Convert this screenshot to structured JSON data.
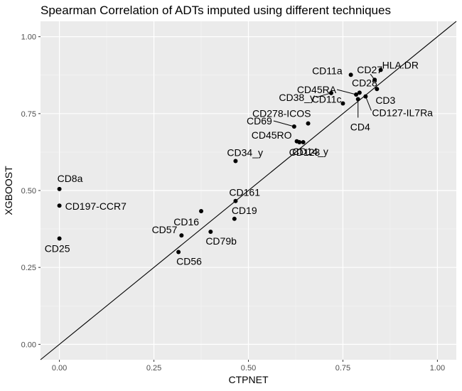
{
  "chart_data": {
    "type": "scatter",
    "title": "Spearman Correlation of ADTs imputed using different techniques",
    "xlabel": "CTPNET",
    "ylabel": "XGBOOST",
    "xlim": [
      -0.05,
      1.05
    ],
    "ylim": [
      -0.05,
      1.05
    ],
    "xticks": [
      "0.00",
      "0.25",
      "0.50",
      "0.75",
      "1.00"
    ],
    "yticks": [
      "0.00",
      "0.25",
      "0.50",
      "0.75",
      "1.00"
    ],
    "grid": true,
    "reference_line": {
      "slope": 1,
      "intercept": 0
    },
    "points": [
      {
        "label": "CD8a",
        "x": 0.0,
        "y": 0.505
      },
      {
        "label": "CD197-CCR7",
        "x": 0.0,
        "y": 0.451
      },
      {
        "label": "CD25",
        "x": 0.0,
        "y": 0.344
      },
      {
        "label": "CD57",
        "x": 0.323,
        "y": 0.354
      },
      {
        "label": "CD56",
        "x": 0.315,
        "y": 0.3
      },
      {
        "label": "CD16",
        "x": 0.375,
        "y": 0.433
      },
      {
        "label": "CD79b",
        "x": 0.4,
        "y": 0.366
      },
      {
        "label": "CD161",
        "x": 0.466,
        "y": 0.466
      },
      {
        "label": "CD19",
        "x": 0.463,
        "y": 0.408
      },
      {
        "label": "CD34_y",
        "x": 0.466,
        "y": 0.596
      },
      {
        "label": "CD69",
        "x": 0.621,
        "y": 0.708
      },
      {
        "label": "CD278-ICOS",
        "x": 0.658,
        "y": 0.718
      },
      {
        "label": "CD45RO",
        "x": 0.628,
        "y": 0.66
      },
      {
        "label": "CD14_y",
        "x": 0.635,
        "y": 0.657
      },
      {
        "label": "CD123",
        "x": 0.645,
        "y": 0.657
      },
      {
        "label": "CD38_y",
        "x": 0.719,
        "y": 0.817
      },
      {
        "label": "CD11c",
        "x": 0.75,
        "y": 0.783
      },
      {
        "label": "CD11a",
        "x": 0.771,
        "y": 0.876
      },
      {
        "label": "CD45RA",
        "x": 0.785,
        "y": 0.812
      },
      {
        "label": "CD28",
        "x": 0.794,
        "y": 0.818
      },
      {
        "label": "CD4",
        "x": 0.79,
        "y": 0.797
      },
      {
        "label": "CD127-IL7Ra",
        "x": 0.81,
        "y": 0.806
      },
      {
        "label": "CD27",
        "x": 0.834,
        "y": 0.86
      },
      {
        "label": "CD3",
        "x": 0.84,
        "y": 0.83
      },
      {
        "label": "HLA.DR",
        "x": 0.85,
        "y": 0.892
      }
    ]
  },
  "colors": {
    "panel_background": "#ebebeb",
    "grid_major": "#ffffff",
    "points": "#000000"
  }
}
